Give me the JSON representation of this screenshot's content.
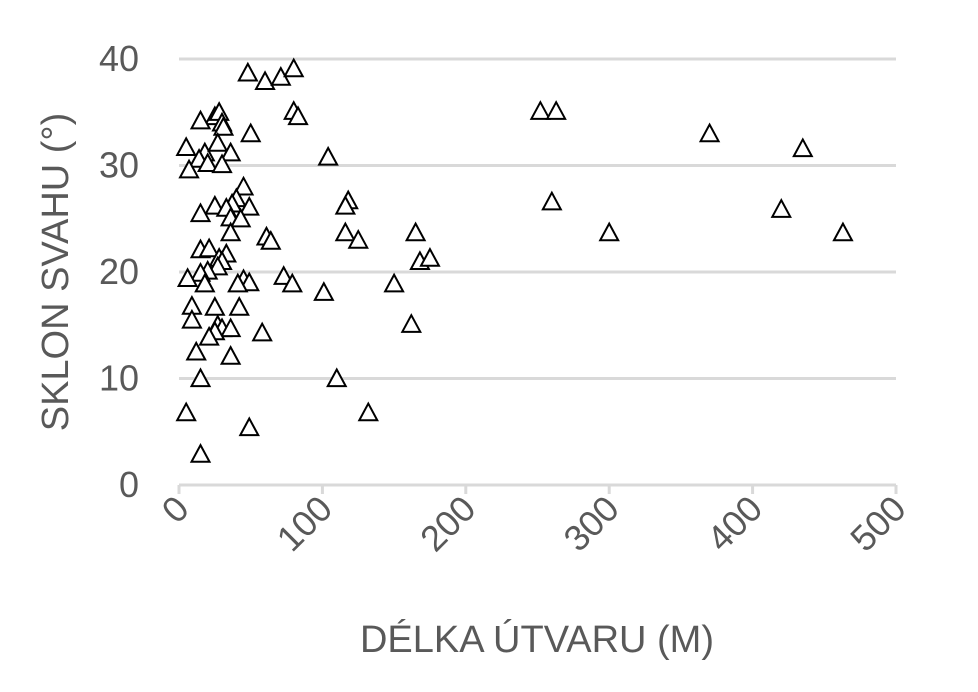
{
  "chart_data": {
    "type": "scatter",
    "title": "",
    "xlabel": "DÉLKA ÚTVARU (M)",
    "ylabel": "SKLON SVAHU (°)",
    "xlim": [
      0,
      500
    ],
    "ylim": [
      0,
      40
    ],
    "xticks": [
      0,
      100,
      200,
      300,
      400,
      500
    ],
    "yticks": [
      0,
      10,
      20,
      30,
      40
    ],
    "grid": "horizontal",
    "marker": "triangle-open",
    "marker_color": "#000000",
    "points": [
      {
        "x": 48,
        "y": 38.7
      },
      {
        "x": 60,
        "y": 37.9
      },
      {
        "x": 71,
        "y": 38.3
      },
      {
        "x": 80,
        "y": 39.1
      },
      {
        "x": 80,
        "y": 35.1
      },
      {
        "x": 83,
        "y": 34.6
      },
      {
        "x": 25,
        "y": 34.6
      },
      {
        "x": 28,
        "y": 35.0
      },
      {
        "x": 30,
        "y": 34.0
      },
      {
        "x": 31,
        "y": 33.6
      },
      {
        "x": 15,
        "y": 34.2
      },
      {
        "x": 50,
        "y": 33.0
      },
      {
        "x": 5,
        "y": 31.7
      },
      {
        "x": 18,
        "y": 31.2
      },
      {
        "x": 27,
        "y": 32.1
      },
      {
        "x": 36,
        "y": 31.2
      },
      {
        "x": 14,
        "y": 30.6
      },
      {
        "x": 20,
        "y": 30.2
      },
      {
        "x": 7,
        "y": 29.6
      },
      {
        "x": 30,
        "y": 30.1
      },
      {
        "x": 104,
        "y": 30.8
      },
      {
        "x": 45,
        "y": 28.0
      },
      {
        "x": 40,
        "y": 26.9
      },
      {
        "x": 37,
        "y": 26.4
      },
      {
        "x": 25,
        "y": 26.2
      },
      {
        "x": 33,
        "y": 26.0
      },
      {
        "x": 49,
        "y": 26.1
      },
      {
        "x": 15,
        "y": 25.5
      },
      {
        "x": 36,
        "y": 25.1
      },
      {
        "x": 43,
        "y": 25.0
      },
      {
        "x": 118,
        "y": 26.7
      },
      {
        "x": 116,
        "y": 26.2
      },
      {
        "x": 36,
        "y": 23.7
      },
      {
        "x": 61,
        "y": 23.3
      },
      {
        "x": 64,
        "y": 22.9
      },
      {
        "x": 116,
        "y": 23.7
      },
      {
        "x": 125,
        "y": 23.0
      },
      {
        "x": 15,
        "y": 22.1
      },
      {
        "x": 21,
        "y": 22.2
      },
      {
        "x": 33,
        "y": 21.7
      },
      {
        "x": 28,
        "y": 21.3
      },
      {
        "x": 30,
        "y": 21.0
      },
      {
        "x": 27,
        "y": 20.5
      },
      {
        "x": 20,
        "y": 20.1
      },
      {
        "x": 15,
        "y": 19.9
      },
      {
        "x": 6,
        "y": 19.4
      },
      {
        "x": 18,
        "y": 18.9
      },
      {
        "x": 45,
        "y": 19.3
      },
      {
        "x": 49,
        "y": 19.0
      },
      {
        "x": 41,
        "y": 18.9
      },
      {
        "x": 73,
        "y": 19.6
      },
      {
        "x": 79,
        "y": 18.9
      },
      {
        "x": 101,
        "y": 18.1
      },
      {
        "x": 150,
        "y": 18.9
      },
      {
        "x": 165,
        "y": 23.7
      },
      {
        "x": 168,
        "y": 21.0
      },
      {
        "x": 175,
        "y": 21.3
      },
      {
        "x": 9,
        "y": 16.8
      },
      {
        "x": 25,
        "y": 16.7
      },
      {
        "x": 42,
        "y": 16.7
      },
      {
        "x": 9,
        "y": 15.5
      },
      {
        "x": 27,
        "y": 15.0
      },
      {
        "x": 30,
        "y": 14.7
      },
      {
        "x": 36,
        "y": 14.7
      },
      {
        "x": 25,
        "y": 14.4
      },
      {
        "x": 21,
        "y": 13.9
      },
      {
        "x": 58,
        "y": 14.3
      },
      {
        "x": 162,
        "y": 15.1
      },
      {
        "x": 12,
        "y": 12.5
      },
      {
        "x": 36,
        "y": 12.1
      },
      {
        "x": 15,
        "y": 10.0
      },
      {
        "x": 110,
        "y": 10.0
      },
      {
        "x": 5,
        "y": 6.8
      },
      {
        "x": 132,
        "y": 6.8
      },
      {
        "x": 49,
        "y": 5.4
      },
      {
        "x": 15,
        "y": 2.9
      },
      {
        "x": 252,
        "y": 35.1
      },
      {
        "x": 263,
        "y": 35.1
      },
      {
        "x": 260,
        "y": 26.6
      },
      {
        "x": 300,
        "y": 23.7
      },
      {
        "x": 370,
        "y": 33.0
      },
      {
        "x": 435,
        "y": 31.6
      },
      {
        "x": 420,
        "y": 25.9
      },
      {
        "x": 463,
        "y": 23.7
      }
    ]
  }
}
